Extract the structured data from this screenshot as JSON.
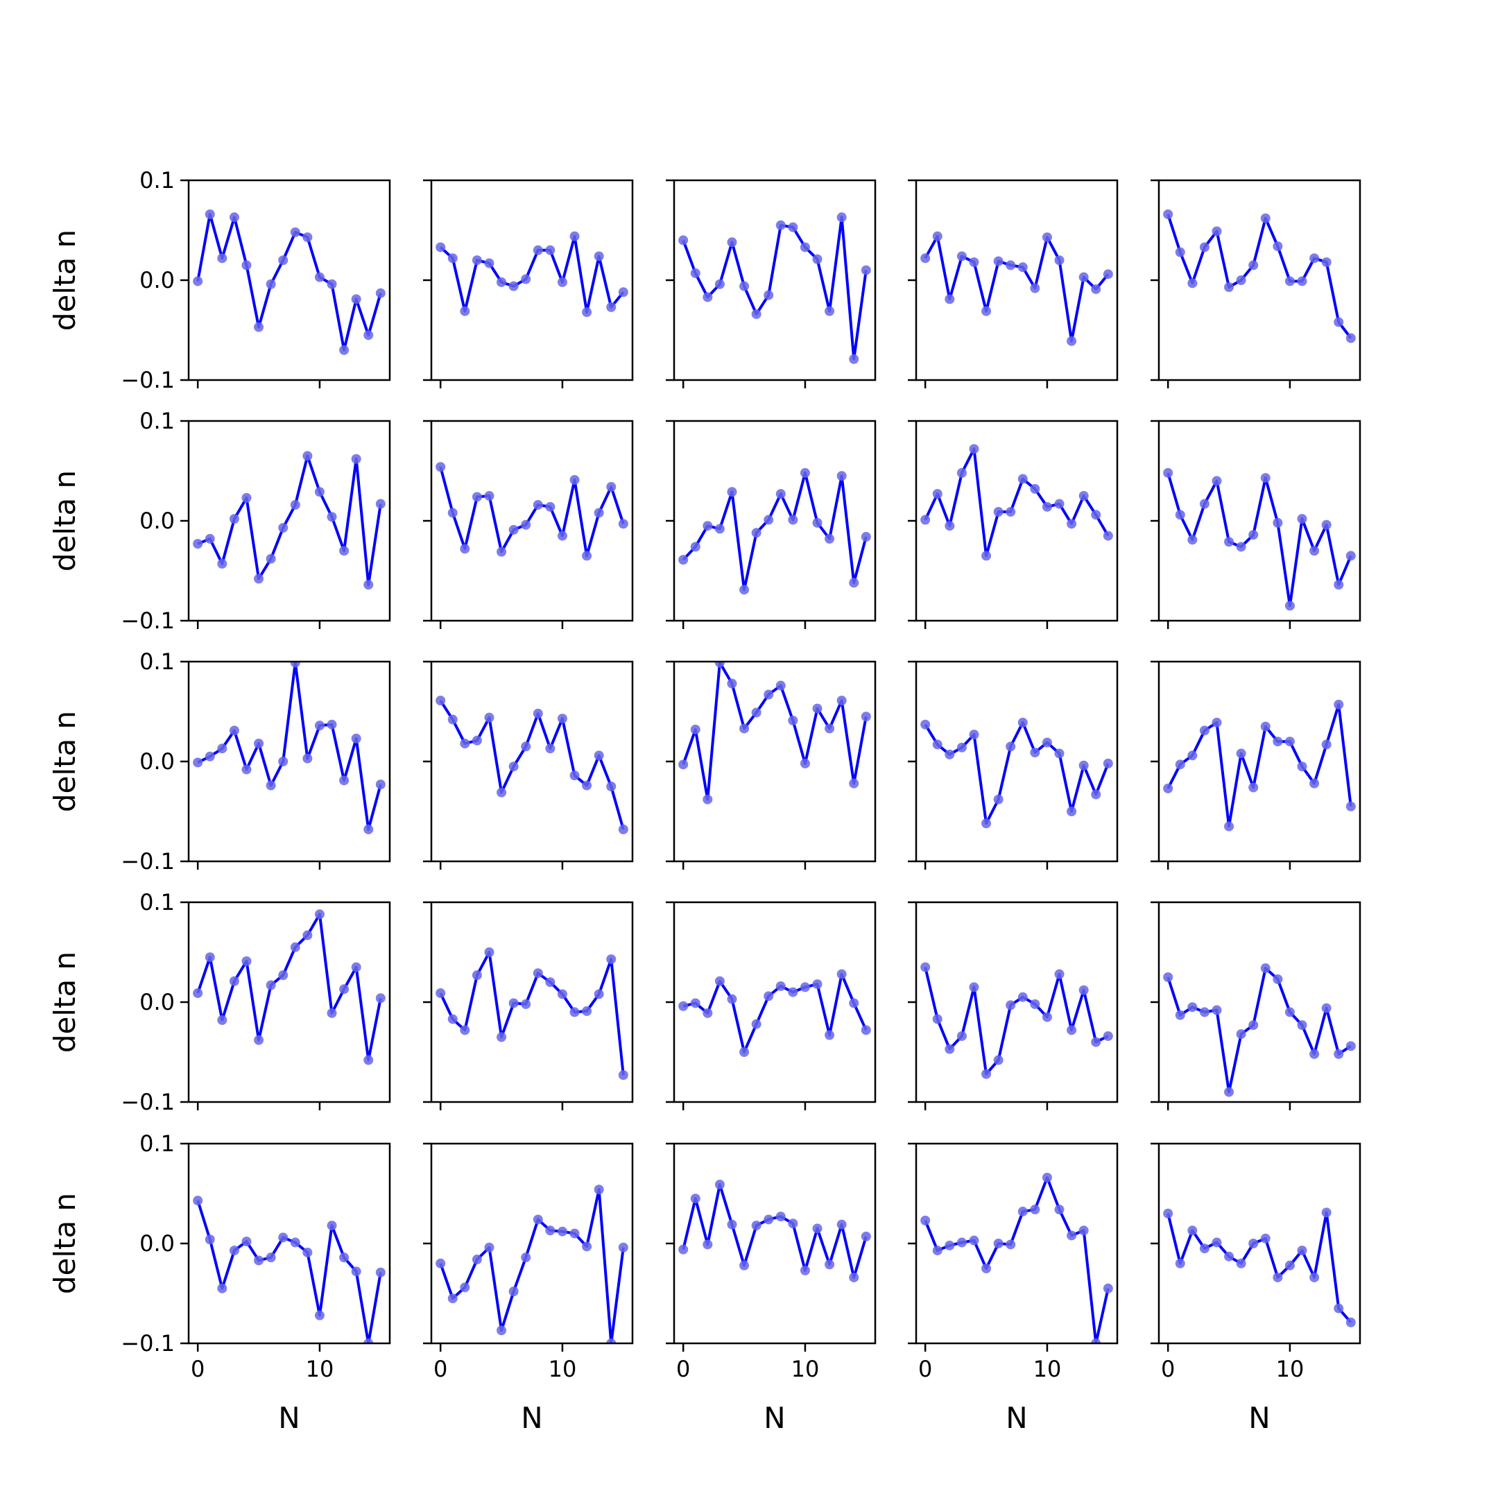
{
  "chart_data": {
    "type": "line",
    "layout": {
      "rows": 5,
      "cols": 5
    },
    "x": [
      0,
      1,
      2,
      3,
      4,
      5,
      6,
      7,
      8,
      9,
      10,
      11,
      12,
      13,
      14,
      15
    ],
    "xlim": [
      -0.75,
      15.75
    ],
    "ylim": [
      -0.1,
      0.1
    ],
    "x_ticks": [
      0,
      10
    ],
    "x_tick_labels": [
      "0",
      "10"
    ],
    "y_ticks": [
      -0.1,
      0.0,
      0.1
    ],
    "y_tick_labels": [
      "−0.1",
      "0.0",
      "0.1"
    ],
    "xlabel": "N",
    "ylabel": "delta n",
    "line_color": "#0000ff",
    "marker_color": "#6666e6",
    "panels": [
      {
        "values": [
          -0.001,
          0.066,
          0.022,
          0.063,
          0.015,
          -0.047,
          -0.004,
          0.02,
          0.048,
          0.043,
          0.003,
          -0.004,
          -0.07,
          -0.019,
          -0.055,
          -0.013
        ]
      },
      {
        "values": [
          0.033,
          0.022,
          -0.031,
          0.02,
          0.017,
          -0.002,
          -0.006,
          0.001,
          0.03,
          0.03,
          -0.002,
          0.044,
          -0.032,
          0.024,
          -0.027,
          -0.012
        ]
      },
      {
        "values": [
          0.04,
          0.007,
          -0.017,
          -0.004,
          0.038,
          -0.006,
          -0.034,
          -0.015,
          0.055,
          0.053,
          0.033,
          0.021,
          -0.031,
          0.063,
          -0.079,
          0.01
        ]
      },
      {
        "values": [
          0.022,
          0.044,
          -0.019,
          0.024,
          0.018,
          -0.031,
          0.019,
          0.015,
          0.013,
          -0.008,
          0.043,
          0.02,
          -0.061,
          0.003,
          -0.009,
          0.006
        ]
      },
      {
        "values": [
          0.066,
          0.028,
          -0.003,
          0.033,
          0.049,
          -0.007,
          0.0,
          0.015,
          0.062,
          0.034,
          -0.001,
          -0.001,
          0.022,
          0.018,
          -0.042,
          -0.058
        ]
      },
      {
        "values": [
          -0.023,
          -0.018,
          -0.043,
          0.002,
          0.023,
          -0.058,
          -0.038,
          -0.007,
          0.016,
          0.065,
          0.029,
          0.004,
          -0.03,
          0.062,
          -0.064,
          0.017
        ]
      },
      {
        "values": [
          0.054,
          0.008,
          -0.028,
          0.024,
          0.025,
          -0.031,
          -0.009,
          -0.004,
          0.016,
          0.014,
          -0.015,
          0.041,
          -0.035,
          0.008,
          0.034,
          -0.003
        ]
      },
      {
        "values": [
          -0.039,
          -0.026,
          -0.005,
          -0.008,
          0.029,
          -0.069,
          -0.012,
          0.001,
          0.027,
          0.001,
          0.048,
          -0.002,
          -0.018,
          0.045,
          -0.062,
          -0.016
        ]
      },
      {
        "values": [
          0.001,
          0.027,
          -0.005,
          0.048,
          0.072,
          -0.035,
          0.009,
          0.009,
          0.042,
          0.032,
          0.014,
          0.017,
          -0.003,
          0.025,
          0.006,
          -0.015
        ]
      },
      {
        "values": [
          0.048,
          0.006,
          -0.019,
          0.017,
          0.04,
          -0.021,
          -0.026,
          -0.014,
          0.043,
          -0.002,
          -0.085,
          0.002,
          -0.03,
          -0.004,
          -0.064,
          -0.035
        ]
      },
      {
        "values": [
          -0.001,
          0.005,
          0.013,
          0.031,
          -0.008,
          0.018,
          -0.024,
          0.0,
          0.099,
          0.003,
          0.036,
          0.037,
          -0.019,
          0.023,
          -0.068,
          -0.023
        ]
      },
      {
        "values": [
          0.061,
          0.042,
          0.018,
          0.021,
          0.044,
          -0.031,
          -0.005,
          0.015,
          0.048,
          0.013,
          0.043,
          -0.014,
          -0.024,
          0.006,
          -0.025,
          -0.068
        ]
      },
      {
        "values": [
          -0.003,
          0.032,
          -0.038,
          0.099,
          0.078,
          0.033,
          0.049,
          0.067,
          0.076,
          0.041,
          -0.002,
          0.053,
          0.033,
          0.061,
          -0.022,
          0.045
        ]
      },
      {
        "values": [
          0.037,
          0.017,
          0.007,
          0.014,
          0.027,
          -0.062,
          -0.038,
          0.015,
          0.039,
          0.009,
          0.019,
          0.008,
          -0.05,
          -0.004,
          -0.033,
          -0.002
        ]
      },
      {
        "values": [
          -0.027,
          -0.003,
          0.006,
          0.031,
          0.039,
          -0.065,
          0.008,
          -0.026,
          0.035,
          0.02,
          0.02,
          -0.005,
          -0.022,
          0.017,
          0.057,
          -0.045
        ]
      },
      {
        "values": [
          0.009,
          0.045,
          -0.018,
          0.021,
          0.041,
          -0.038,
          0.017,
          0.027,
          0.055,
          0.067,
          0.088,
          -0.011,
          0.013,
          0.035,
          -0.058,
          0.004
        ]
      },
      {
        "values": [
          0.009,
          -0.017,
          -0.028,
          0.027,
          0.05,
          -0.035,
          -0.001,
          -0.002,
          0.029,
          0.02,
          0.008,
          -0.01,
          -0.009,
          0.008,
          0.043,
          -0.073
        ]
      },
      {
        "values": [
          -0.004,
          -0.001,
          -0.011,
          0.021,
          0.003,
          -0.05,
          -0.022,
          0.006,
          0.016,
          0.01,
          0.015,
          0.018,
          -0.033,
          0.028,
          -0.001,
          -0.028
        ]
      },
      {
        "values": [
          0.035,
          -0.017,
          -0.047,
          -0.034,
          0.015,
          -0.072,
          -0.058,
          -0.003,
          0.005,
          -0.002,
          -0.015,
          0.028,
          -0.028,
          0.012,
          -0.04,
          -0.034
        ]
      },
      {
        "values": [
          0.025,
          -0.013,
          -0.005,
          -0.01,
          -0.008,
          -0.09,
          -0.032,
          -0.023,
          0.034,
          0.023,
          -0.01,
          -0.023,
          -0.052,
          -0.006,
          -0.052,
          -0.044
        ]
      },
      {
        "values": [
          0.043,
          0.004,
          -0.045,
          -0.007,
          0.002,
          -0.017,
          -0.014,
          0.006,
          0.001,
          -0.009,
          -0.072,
          0.018,
          -0.014,
          -0.028,
          -0.1,
          -0.029
        ]
      },
      {
        "values": [
          -0.02,
          -0.055,
          -0.044,
          -0.016,
          -0.004,
          -0.087,
          -0.048,
          -0.014,
          0.024,
          0.013,
          0.012,
          0.01,
          -0.003,
          0.054,
          -0.1,
          -0.004
        ]
      },
      {
        "values": [
          -0.006,
          0.045,
          -0.001,
          0.059,
          0.019,
          -0.022,
          0.018,
          0.024,
          0.027,
          0.02,
          -0.027,
          0.015,
          -0.021,
          0.019,
          -0.034,
          0.007
        ]
      },
      {
        "values": [
          0.023,
          -0.007,
          -0.002,
          0.001,
          0.003,
          -0.025,
          0.0,
          -0.001,
          0.032,
          0.034,
          0.066,
          0.034,
          0.008,
          0.013,
          -0.1,
          -0.045
        ]
      },
      {
        "values": [
          0.03,
          -0.02,
          0.013,
          -0.005,
          0.001,
          -0.013,
          -0.02,
          0.0,
          0.005,
          -0.034,
          -0.022,
          -0.007,
          -0.034,
          0.031,
          -0.065,
          -0.079
        ]
      }
    ]
  }
}
